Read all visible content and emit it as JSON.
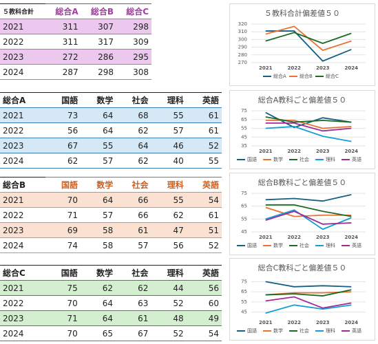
{
  "tables": [
    {
      "header": [
        "５教科合計",
        "総合A",
        "総合B",
        "総合C"
      ],
      "rows": [
        [
          "2021",
          311,
          307,
          298
        ],
        [
          "2022",
          311,
          317,
          309
        ],
        [
          "2023",
          272,
          286,
          295
        ],
        [
          "2024",
          287,
          298,
          308
        ]
      ]
    },
    {
      "header": [
        "総合A",
        "国語",
        "数学",
        "社会",
        "理科",
        "英語"
      ],
      "rows": [
        [
          "2021",
          73,
          64,
          68,
          55,
          61
        ],
        [
          "2022",
          56,
          64,
          62,
          57,
          61
        ],
        [
          "2023",
          67,
          55,
          64,
          46,
          52
        ],
        [
          "2024",
          62,
          57,
          62,
          40,
          55
        ]
      ]
    },
    {
      "header": [
        "総合B",
        "国語",
        "数学",
        "社会",
        "理科",
        "英語"
      ],
      "rows": [
        [
          "2021",
          70,
          64,
          66,
          55,
          54
        ],
        [
          "2022",
          71,
          57,
          66,
          62,
          61
        ],
        [
          "2023",
          69,
          58,
          61,
          47,
          51
        ],
        [
          "2024",
          74,
          58,
          57,
          56,
          52
        ]
      ]
    },
    {
      "header": [
        "総合C",
        "国語",
        "数学",
        "社会",
        "理科",
        "英語"
      ],
      "rows": [
        [
          "2021",
          75,
          62,
          62,
          44,
          56
        ],
        [
          "2022",
          70,
          64,
          63,
          52,
          60
        ],
        [
          "2023",
          71,
          64,
          61,
          48,
          49
        ],
        [
          "2024",
          70,
          65,
          67,
          52,
          54
        ]
      ]
    }
  ],
  "chart_data": [
    {
      "type": "line",
      "title": "５教科合計偏差値５０",
      "categories": [
        "2021",
        "2022",
        "2023",
        "2024"
      ],
      "ylim": [
        270,
        320
      ],
      "yticks": [
        270,
        280,
        290,
        300,
        310,
        320
      ],
      "grid": true,
      "series": [
        {
          "name": "総合A",
          "color": "#156082",
          "values": [
            311,
            311,
            272,
            287
          ]
        },
        {
          "name": "総合B",
          "color": "#e97132",
          "values": [
            307,
            317,
            286,
            298
          ]
        },
        {
          "name": "総合C",
          "color": "#196b24",
          "values": [
            298,
            309,
            295,
            308
          ]
        }
      ]
    },
    {
      "type": "line",
      "title": "総合A教科ごと偏差値５０",
      "categories": [
        "2021",
        "2022",
        "2023",
        "2024"
      ],
      "ylim": [
        35,
        75
      ],
      "yticks": [
        35,
        45,
        55,
        65,
        75
      ],
      "grid": true,
      "series": [
        {
          "name": "国語",
          "color": "#156082",
          "values": [
            73,
            56,
            67,
            62
          ]
        },
        {
          "name": "数学",
          "color": "#e97132",
          "values": [
            64,
            64,
            55,
            57
          ]
        },
        {
          "name": "社会",
          "color": "#196b24",
          "values": [
            68,
            62,
            64,
            62
          ]
        },
        {
          "name": "理科",
          "color": "#0f9ed5",
          "values": [
            55,
            57,
            46,
            40
          ]
        },
        {
          "name": "英語",
          "color": "#a02b93",
          "values": [
            61,
            61,
            52,
            55
          ]
        }
      ]
    },
    {
      "type": "line",
      "title": "総合B教科ごと偏差値５０",
      "categories": [
        "2021",
        "2022",
        "2023",
        "2024"
      ],
      "ylim": [
        45,
        75
      ],
      "yticks": [
        45,
        55,
        65,
        75
      ],
      "grid": true,
      "series": [
        {
          "name": "国語",
          "color": "#156082",
          "values": [
            70,
            71,
            69,
            74
          ]
        },
        {
          "name": "数学",
          "color": "#e97132",
          "values": [
            64,
            57,
            58,
            58
          ]
        },
        {
          "name": "社会",
          "color": "#196b24",
          "values": [
            66,
            66,
            61,
            57
          ]
        },
        {
          "name": "理科",
          "color": "#0f9ed5",
          "values": [
            55,
            62,
            47,
            56
          ]
        },
        {
          "name": "英語",
          "color": "#a02b93",
          "values": [
            54,
            61,
            51,
            52
          ]
        }
      ]
    },
    {
      "type": "line",
      "title": "総合C教科ごと偏差値５０",
      "categories": [
        "2021",
        "2022",
        "2023",
        "2024"
      ],
      "ylim": [
        40,
        78
      ],
      "yticks": [
        45,
        55,
        65,
        75
      ],
      "grid": true,
      "series": [
        {
          "name": "国語",
          "color": "#156082",
          "values": [
            75,
            70,
            71,
            70
          ]
        },
        {
          "name": "数学",
          "color": "#e97132",
          "values": [
            62,
            64,
            64,
            65
          ]
        },
        {
          "name": "社会",
          "color": "#196b24",
          "values": [
            62,
            63,
            61,
            67
          ]
        },
        {
          "name": "理科",
          "color": "#0f9ed5",
          "values": [
            44,
            52,
            48,
            52
          ]
        },
        {
          "name": "英語",
          "color": "#a02b93",
          "values": [
            56,
            60,
            49,
            54
          ]
        }
      ]
    }
  ]
}
